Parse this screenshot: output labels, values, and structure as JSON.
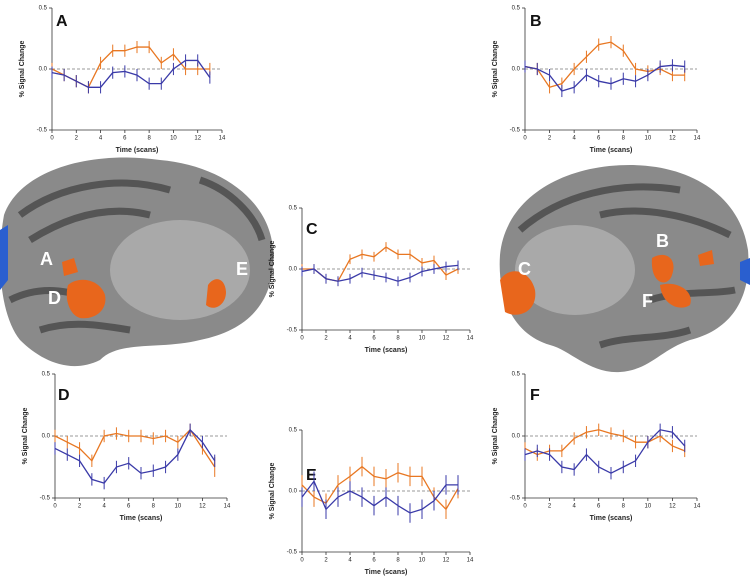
{
  "chart_data": [
    {
      "type": "line",
      "title": "A",
      "x_label": "Time (scans)",
      "y_label": "% Signal Change",
      "x": [
        0,
        1,
        2,
        3,
        4,
        5,
        6,
        7,
        8,
        9,
        10,
        11,
        12,
        13
      ],
      "xlim": [
        0,
        14
      ],
      "xticks": [
        0,
        2,
        4,
        6,
        8,
        10,
        12,
        14
      ],
      "ylim": [
        -0.5,
        0.5
      ],
      "yticks": [
        {
          "value": -0.5,
          "label": "-0.5"
        },
        {
          "value": 0,
          "label": "0.0"
        },
        {
          "value": 0.5,
          "label": "0.5"
        }
      ],
      "series": [
        {
          "color": "#e87722",
          "values": [
            0.0,
            -0.05,
            -0.1,
            -0.15,
            0.05,
            0.15,
            0.15,
            0.18,
            0.18,
            0.05,
            0.12,
            0.0,
            0.0,
            0.0
          ],
          "errors": [
            0.05,
            0.05,
            0.05,
            0.05,
            0.05,
            0.05,
            0.05,
            0.05,
            0.05,
            0.05,
            0.05,
            0.05,
            0.05,
            0.05
          ]
        },
        {
          "color": "#3a3aa8",
          "values": [
            -0.03,
            -0.05,
            -0.1,
            -0.15,
            -0.15,
            -0.03,
            -0.02,
            -0.05,
            -0.12,
            -0.12,
            0.0,
            0.07,
            0.07,
            -0.07
          ],
          "errors": [
            0.05,
            0.05,
            0.05,
            0.05,
            0.05,
            0.05,
            0.05,
            0.05,
            0.05,
            0.05,
            0.05,
            0.05,
            0.05,
            0.05
          ]
        }
      ]
    },
    {
      "type": "line",
      "title": "B",
      "x_label": "Time (scans)",
      "y_label": "% Signal Change",
      "x": [
        0,
        1,
        2,
        3,
        4,
        5,
        6,
        7,
        8,
        9,
        10,
        11,
        12,
        13
      ],
      "xlim": [
        0,
        14
      ],
      "xticks": [
        0,
        2,
        4,
        6,
        8,
        10,
        12,
        14
      ],
      "ylim": [
        -0.5,
        0.5
      ],
      "yticks": [
        {
          "value": -0.5,
          "label": "-0.5"
        },
        {
          "value": 0,
          "label": "0.0"
        },
        {
          "value": 0.5,
          "label": "0.5"
        }
      ],
      "series": [
        {
          "color": "#e87722",
          "values": [
            0.02,
            0.0,
            -0.15,
            -0.12,
            0.0,
            0.1,
            0.2,
            0.22,
            0.15,
            0.0,
            -0.02,
            0.0,
            -0.05,
            -0.05
          ],
          "errors": [
            0.05,
            0.05,
            0.05,
            0.05,
            0.05,
            0.05,
            0.05,
            0.05,
            0.05,
            0.05,
            0.05,
            0.05,
            0.05,
            0.05
          ]
        },
        {
          "color": "#3a3aa8",
          "values": [
            0.02,
            0.0,
            -0.05,
            -0.18,
            -0.15,
            -0.05,
            -0.1,
            -0.12,
            -0.08,
            -0.1,
            -0.05,
            0.02,
            0.03,
            0.02
          ],
          "errors": [
            0.05,
            0.05,
            0.05,
            0.05,
            0.05,
            0.05,
            0.05,
            0.05,
            0.05,
            0.05,
            0.05,
            0.05,
            0.05,
            0.05
          ]
        }
      ]
    },
    {
      "type": "line",
      "title": "C",
      "x_label": "Time (scans)",
      "y_label": "% Signal Change",
      "x": [
        0,
        1,
        2,
        3,
        4,
        5,
        6,
        7,
        8,
        9,
        10,
        11,
        12,
        13
      ],
      "xlim": [
        0,
        14
      ],
      "xticks": [
        0,
        2,
        4,
        6,
        8,
        10,
        12,
        14
      ],
      "ylim": [
        -0.5,
        0.5
      ],
      "yticks": [
        {
          "value": -0.5,
          "label": "-0.5"
        },
        {
          "value": 0,
          "label": "0.0"
        },
        {
          "value": 0.5,
          "label": "0.5"
        }
      ],
      "series": [
        {
          "color": "#e87722",
          "values": [
            0.0,
            0.0,
            -0.08,
            -0.1,
            0.08,
            0.12,
            0.1,
            0.18,
            0.12,
            0.12,
            0.05,
            0.07,
            -0.05,
            0.0
          ],
          "errors": [
            0.04,
            0.04,
            0.04,
            0.04,
            0.04,
            0.04,
            0.04,
            0.04,
            0.04,
            0.04,
            0.04,
            0.04,
            0.04,
            0.04
          ]
        },
        {
          "color": "#3a3aa8",
          "values": [
            -0.02,
            0.0,
            -0.08,
            -0.1,
            -0.08,
            -0.03,
            -0.05,
            -0.07,
            -0.1,
            -0.07,
            -0.02,
            0.0,
            0.02,
            0.03
          ],
          "errors": [
            0.04,
            0.04,
            0.04,
            0.04,
            0.04,
            0.04,
            0.04,
            0.04,
            0.04,
            0.04,
            0.04,
            0.04,
            0.04,
            0.04
          ]
        }
      ]
    },
    {
      "type": "line",
      "title": "D",
      "x_label": "Time (scans)",
      "y_label": "% Signal Change",
      "x": [
        0,
        1,
        2,
        3,
        4,
        5,
        6,
        7,
        8,
        9,
        10,
        11,
        12,
        13
      ],
      "xlim": [
        0,
        14
      ],
      "xticks": [
        0,
        2,
        4,
        6,
        8,
        10,
        12,
        14
      ],
      "ylim": [
        -0.5,
        0.5
      ],
      "yticks": [
        {
          "value": -0.5,
          "label": "-0.5"
        },
        {
          "value": 0,
          "label": "0.0"
        },
        {
          "value": 0.5,
          "label": "0.5"
        }
      ],
      "series": [
        {
          "color": "#e87722",
          "values": [
            0.0,
            -0.05,
            -0.1,
            -0.2,
            0.0,
            0.02,
            0.0,
            0.0,
            -0.02,
            0.0,
            -0.05,
            0.05,
            -0.1,
            -0.25
          ],
          "errors": [
            0.05,
            0.05,
            0.05,
            0.05,
            0.05,
            0.05,
            0.05,
            0.05,
            0.05,
            0.05,
            0.05,
            0.05,
            0.05,
            0.08
          ]
        },
        {
          "color": "#3a3aa8",
          "values": [
            -0.1,
            -0.15,
            -0.2,
            -0.35,
            -0.38,
            -0.25,
            -0.22,
            -0.3,
            -0.28,
            -0.25,
            -0.15,
            0.05,
            -0.05,
            -0.2
          ],
          "errors": [
            0.05,
            0.05,
            0.05,
            0.05,
            0.05,
            0.05,
            0.05,
            0.05,
            0.05,
            0.05,
            0.05,
            0.05,
            0.05,
            0.05
          ]
        }
      ]
    },
    {
      "type": "line",
      "title": "E",
      "x_label": "Time (scans)",
      "y_label": "% Signal Change",
      "x": [
        0,
        1,
        2,
        3,
        4,
        5,
        6,
        7,
        8,
        9,
        10,
        11,
        12,
        13
      ],
      "xlim": [
        0,
        14
      ],
      "xticks": [
        0,
        2,
        4,
        6,
        8,
        10,
        12,
        14
      ],
      "ylim": [
        -0.5,
        0.5
      ],
      "yticks": [
        {
          "value": -0.5,
          "label": "-0.5"
        },
        {
          "value": 0,
          "label": "0.0"
        },
        {
          "value": 0.5,
          "label": "0.5"
        }
      ],
      "series": [
        {
          "color": "#e87722",
          "values": [
            0.05,
            -0.05,
            -0.1,
            0.05,
            0.12,
            0.2,
            0.12,
            0.1,
            0.15,
            0.12,
            0.12,
            -0.05,
            -0.15,
            0.02
          ],
          "errors": [
            0.08,
            0.08,
            0.08,
            0.08,
            0.08,
            0.08,
            0.08,
            0.08,
            0.08,
            0.08,
            0.08,
            0.08,
            0.08,
            0.08
          ]
        },
        {
          "color": "#3a3aa8",
          "values": [
            -0.05,
            0.08,
            -0.15,
            -0.05,
            0.0,
            -0.05,
            -0.12,
            -0.05,
            -0.12,
            -0.18,
            -0.15,
            -0.08,
            0.05,
            0.05
          ],
          "errors": [
            0.08,
            0.08,
            0.08,
            0.08,
            0.08,
            0.08,
            0.08,
            0.08,
            0.08,
            0.08,
            0.08,
            0.08,
            0.08,
            0.08
          ]
        }
      ]
    },
    {
      "type": "line",
      "title": "F",
      "x_label": "Time (scans)",
      "y_label": "% Signal Change",
      "x": [
        0,
        1,
        2,
        3,
        4,
        5,
        6,
        7,
        8,
        9,
        10,
        11,
        12,
        13
      ],
      "xlim": [
        0,
        14
      ],
      "xticks": [
        0,
        2,
        4,
        6,
        8,
        10,
        12,
        14
      ],
      "ylim": [
        -0.5,
        0.5
      ],
      "yticks": [
        {
          "value": -0.5,
          "label": "-0.5"
        },
        {
          "value": 0,
          "label": "0.0"
        },
        {
          "value": 0.5,
          "label": "0.5"
        }
      ],
      "series": [
        {
          "color": "#e87722",
          "values": [
            -0.1,
            -0.15,
            -0.12,
            -0.12,
            -0.02,
            0.03,
            0.05,
            0.02,
            0.0,
            -0.05,
            -0.05,
            0.0,
            -0.08,
            -0.12
          ],
          "errors": [
            0.05,
            0.05,
            0.05,
            0.05,
            0.05,
            0.05,
            0.05,
            0.05,
            0.05,
            0.05,
            0.05,
            0.05,
            0.05,
            0.05
          ]
        },
        {
          "color": "#3a3aa8",
          "values": [
            -0.15,
            -0.12,
            -0.15,
            -0.25,
            -0.27,
            -0.15,
            -0.25,
            -0.3,
            -0.25,
            -0.2,
            -0.05,
            0.05,
            0.03,
            -0.08
          ],
          "errors": [
            0.05,
            0.05,
            0.05,
            0.05,
            0.05,
            0.05,
            0.05,
            0.05,
            0.05,
            0.05,
            0.05,
            0.05,
            0.05,
            0.05
          ]
        }
      ]
    }
  ],
  "brain_left_labels": [
    "A",
    "D",
    "E"
  ],
  "brain_right_labels": [
    "B",
    "C",
    "F"
  ]
}
